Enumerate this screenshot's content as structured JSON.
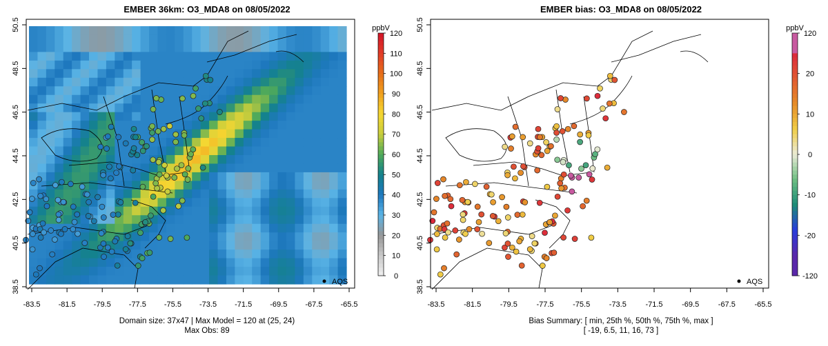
{
  "left": {
    "title": "EMBER 36km: O3_MDA8 on 08/05/2022",
    "caption_line1": "Domain size: 37x47 | Max Model = 120 at (25, 24)",
    "caption_line2": "Max Obs: 89",
    "legend_label": "AQS",
    "colorbar_unit": "ppbV",
    "colorbar_ticks": [
      "120",
      "110",
      "100",
      "90",
      "80",
      "70",
      "60",
      "50",
      "40",
      "30",
      "20",
      "10",
      "0"
    ]
  },
  "right": {
    "title": "EMBER bias: O3_MDA8 on 08/05/2022",
    "caption_line1": "Bias Summary: [ min, 25th %, 50th %, 75th %, max ]",
    "caption_line2": "[ -19,  6.5,  11,  16,  73 ]",
    "legend_label": "AQS",
    "colorbar_unit": "ppbV",
    "colorbar_ticks": [
      "120",
      "20",
      "10",
      "0",
      "-10",
      "-20",
      "-120"
    ]
  },
  "axes": {
    "x_ticks": [
      "-83.5",
      "-81.5",
      "-79.5",
      "-77.5",
      "-75.5",
      "-73.5",
      "-71.5",
      "-69.5",
      "-67.5",
      "-65.5"
    ],
    "y_ticks": [
      "50.5",
      "48.5",
      "46.5",
      "44.5",
      "42.5",
      "40.5",
      "38.5"
    ]
  },
  "colors": {
    "ocean_fill": "#4ea6dc",
    "high_ozone": "#f2b51f",
    "bias_high": "#e8242a",
    "bias_low": "#1f5fd6"
  }
}
